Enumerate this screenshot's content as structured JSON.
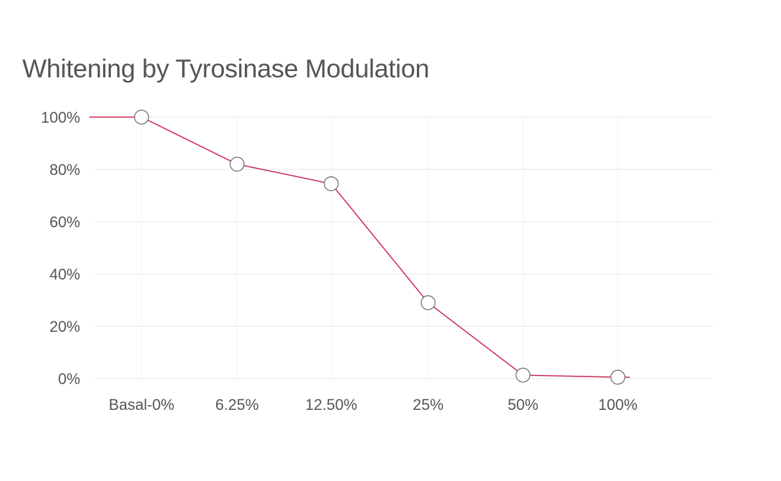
{
  "chart_data": {
    "type": "line",
    "title": "Whitening by Tyrosinase Modulation",
    "xlabel": "",
    "ylabel": "",
    "categories": [
      "Basal-0%",
      "6.25%",
      "12.50%",
      "25%",
      "50%",
      "100%"
    ],
    "series": [
      {
        "name": "Whitening",
        "values": [
          100,
          82,
          74.5,
          29,
          1.3,
          0.5
        ]
      }
    ],
    "ylim": [
      0,
      100
    ],
    "yticks": [
      0,
      20,
      40,
      60,
      80,
      100
    ],
    "ytick_labels": [
      "0%",
      "20%",
      "40%",
      "60%",
      "80%",
      "100%"
    ],
    "grid": true,
    "legend": "none",
    "colors": {
      "line": "#c8234a",
      "marker_edge": "#666666",
      "marker_fill": "#ffffff",
      "grid": "#e6e6e6",
      "text": "#555555"
    }
  }
}
